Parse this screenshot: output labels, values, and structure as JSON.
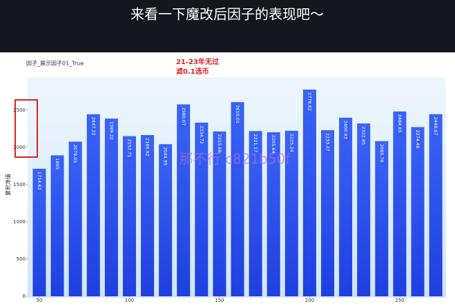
{
  "caption": "来看一下魔改后因子的表现吧～",
  "chart_data": {
    "type": "bar",
    "title": "因子_展示因子01_True",
    "annotation": [
      "21-23年无过",
      "滤0.1选币"
    ],
    "watermark": "那不行 c821b50f",
    "ylabel": "累积净值",
    "x": [
      50,
      60,
      70,
      80,
      90,
      100,
      110,
      120,
      130,
      140,
      150,
      160,
      170,
      180,
      190,
      200,
      210,
      220,
      230,
      240,
      250,
      260,
      270
    ],
    "values": [
      1714.62,
      1895,
      2079.05,
      2447.22,
      2389.22,
      2152.71,
      2166.92,
      2044.95,
      2580.07,
      2334.72,
      2215.68,
      2610.01,
      2221.17,
      2205.64,
      2225.24,
      2778.62,
      2233.47,
      2400.93,
      2322.85,
      2085.78,
      2484.65,
      2274.48,
      2448.67
    ],
    "color": "#2d55f2",
    "xlim": [
      43.5,
      275.7
    ],
    "xticks": [
      50,
      100,
      150,
      200,
      250
    ],
    "ylim": [
      0,
      2890
    ],
    "yticks": [
      0,
      500,
      1000,
      1500,
      2000,
      2500
    ]
  }
}
